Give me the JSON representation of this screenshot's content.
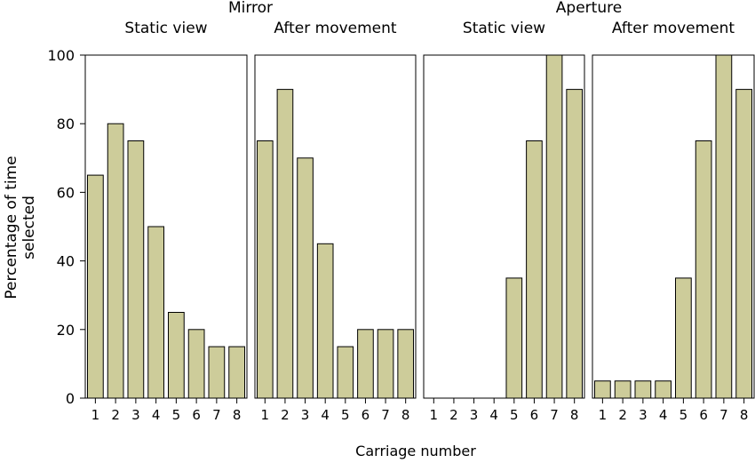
{
  "chart_data": {
    "type": "bar",
    "layout": "faceted, 4 panels sharing y axis",
    "group_labels": [
      "Mirror",
      "Aperture"
    ],
    "xlabel": "Carriage number",
    "ylabel": "Percentage of time selected",
    "ylim": [
      0,
      100
    ],
    "y_ticks": [
      0,
      20,
      40,
      60,
      80,
      100
    ],
    "categories": [
      "1",
      "2",
      "3",
      "4",
      "5",
      "6",
      "7",
      "8"
    ],
    "grid": false,
    "bar_color": "#cdcc9a",
    "bar_edge_color": "#000000",
    "panels": [
      {
        "group": "Mirror",
        "title": "Static view",
        "values": [
          65,
          80,
          75,
          50,
          25,
          20,
          15,
          15
        ]
      },
      {
        "group": "Mirror",
        "title": "After movement",
        "values": [
          75,
          90,
          70,
          45,
          15,
          20,
          20,
          20
        ]
      },
      {
        "group": "Aperture",
        "title": "Static view",
        "values": [
          0,
          0,
          0,
          0,
          35,
          75,
          100,
          90
        ]
      },
      {
        "group": "Aperture",
        "title": "After movement",
        "values": [
          5,
          5,
          5,
          5,
          35,
          75,
          100,
          90
        ]
      }
    ]
  }
}
